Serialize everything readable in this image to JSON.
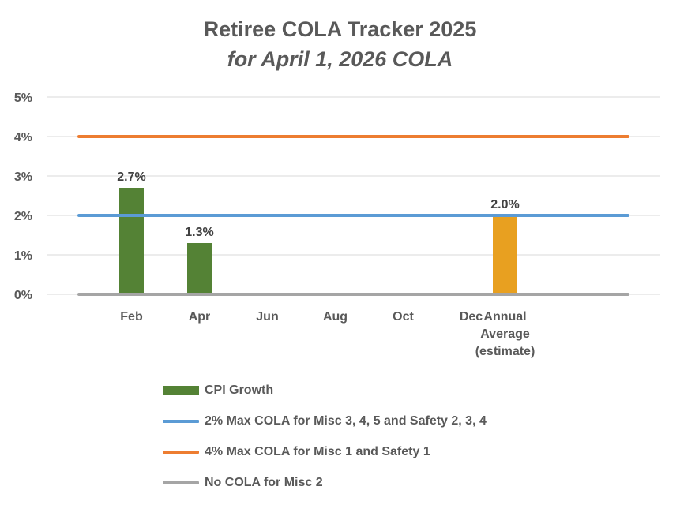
{
  "chart_data": {
    "type": "bar",
    "title": "Retiree COLA Tracker 2025",
    "subtitle": "for April 1, 2026 COLA",
    "categories": [
      "",
      "Feb",
      "",
      "Apr",
      "",
      "Jun",
      "",
      "Aug",
      "",
      "Oct",
      "",
      "Dec",
      "Annual Average (estimate)",
      ""
    ],
    "category_label_lines": [
      [],
      [
        "Feb"
      ],
      [],
      [
        "Apr"
      ],
      [],
      [
        "Jun"
      ],
      [],
      [
        "Aug"
      ],
      [],
      [
        "Oct"
      ],
      [],
      [
        "Dec"
      ],
      [
        "Annual",
        "Average",
        "(estimate)"
      ],
      []
    ],
    "ylim": [
      0,
      5
    ],
    "yticks": [
      0,
      1,
      2,
      3,
      4,
      5
    ],
    "ytick_labels": [
      "0%",
      "1%",
      "2%",
      "3%",
      "4%",
      "5%"
    ],
    "gridlines": true,
    "legend_position": "bottom",
    "bars": [
      {
        "category_index": 1,
        "value": 2.7,
        "label": "2.7%",
        "series": "CPI Growth"
      },
      {
        "category_index": 3,
        "value": 1.3,
        "label": "1.3%",
        "series": "CPI Growth"
      },
      {
        "category_index": 12,
        "value": 2.0,
        "label": "2.0%",
        "series": "Annual Average (estimate)"
      }
    ],
    "series": [
      {
        "name": "CPI Growth",
        "kind": "bar",
        "color": "#548235"
      },
      {
        "name": "2% Max COLA for Misc 3, 4, 5 and Safety 2, 3, 4",
        "kind": "line",
        "value": 2,
        "color": "#5B9BD5"
      },
      {
        "name": "4% Max COLA for Misc 1 and Safety 1",
        "kind": "line",
        "value": 4,
        "color": "#ED7D31"
      },
      {
        "name": "No COLA for Misc 2",
        "kind": "line",
        "value": 0,
        "color": "#A5A5A5"
      }
    ],
    "annual_bar_color": "#E8A020"
  }
}
